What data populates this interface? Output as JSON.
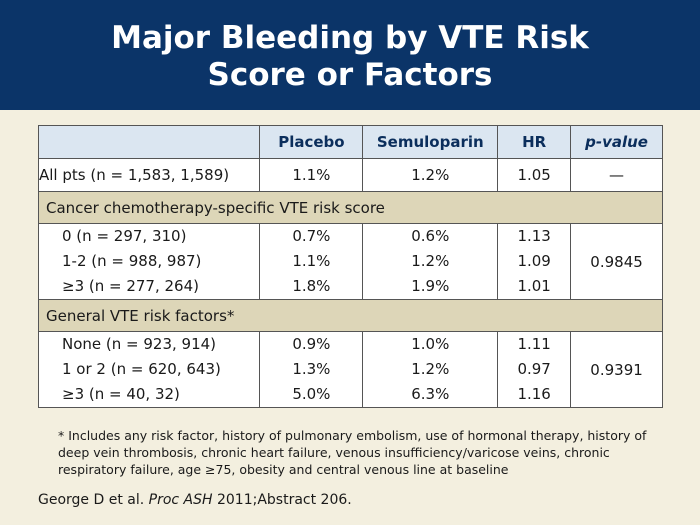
{
  "title": {
    "line1": "Major Bleeding by VTE Risk",
    "line2": "Score or Factors"
  },
  "table": {
    "headers": [
      "",
      "Placebo",
      "Semuloparin",
      "HR",
      "p-value"
    ],
    "pvalue_header": {
      "italic": "p",
      "rest": "-value"
    },
    "all_row": {
      "label": "All pts (n = 1,583, 1,589)",
      "placebo": "1.1%",
      "semuloparin": "1.2%",
      "hr": "1.05",
      "pvalue": "—"
    },
    "sections": [
      {
        "title": "Cancer chemotherapy-specific VTE risk score",
        "rows": [
          {
            "label": "0 (n = 297, 310)",
            "placebo": "0.7%",
            "semuloparin": "0.6%",
            "hr": "1.13"
          },
          {
            "label": "1-2 (n = 988, 987)",
            "placebo": "1.1%",
            "semuloparin": "1.2%",
            "hr": "1.09"
          },
          {
            "label": "≥3 (n = 277, 264)",
            "placebo": "1.8%",
            "semuloparin": "1.9%",
            "hr": "1.01"
          }
        ],
        "pvalue": "0.9845"
      },
      {
        "title": "General VTE risk factors*",
        "rows": [
          {
            "label": "None (n = 923, 914)",
            "placebo": "0.9%",
            "semuloparin": "1.0%",
            "hr": "1.11"
          },
          {
            "label": "1 or 2 (n = 620, 643)",
            "placebo": "1.3%",
            "semuloparin": "1.2%",
            "hr": "0.97"
          },
          {
            "label": "≥3 (n = 40, 32)",
            "placebo": "5.0%",
            "semuloparin": "6.3%",
            "hr": "1.16"
          }
        ],
        "pvalue": "0.9391"
      }
    ]
  },
  "footnote": "* Includes any risk factor, history of pulmonary embolism, use of hormonal therapy, history of deep vein thrombosis, chronic heart failure, venous insufficiency/varicose veins, chronic respiratory failure, age ≥75, obesity and central venous line at baseline",
  "citation": {
    "authors": "George D et al. ",
    "journal": "Proc ASH",
    "rest": " 2011;Abstract 206."
  }
}
